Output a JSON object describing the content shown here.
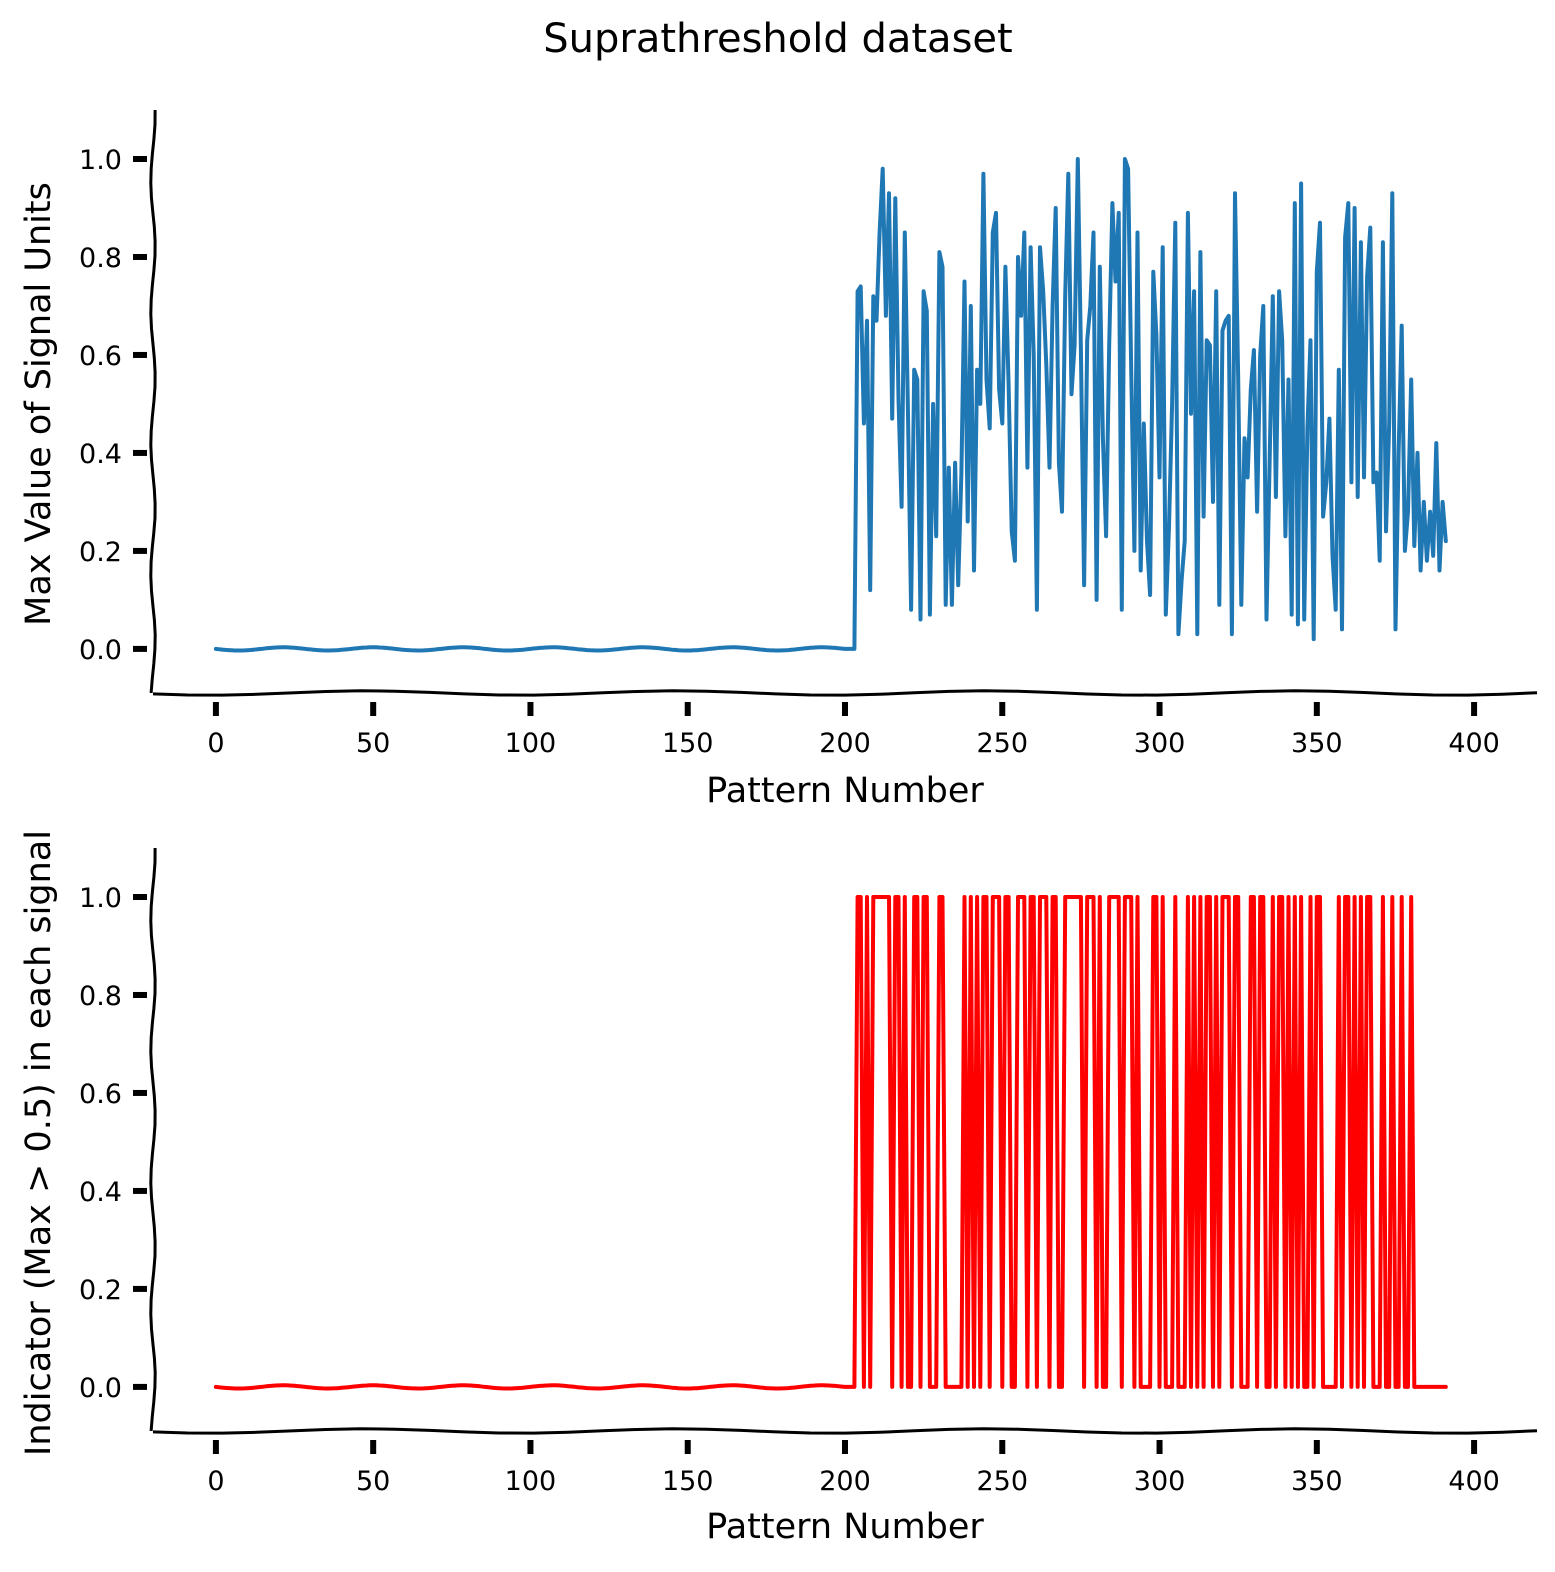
{
  "chart_data": [
    {
      "type": "line",
      "title": "Suprathreshold dataset",
      "xlabel": "Pattern Number",
      "ylabel": "Max Value of Signal Units",
      "xlim": [
        -20,
        420
      ],
      "ylim": [
        -0.09,
        1.1
      ],
      "xticks": [
        0,
        50,
        100,
        150,
        200,
        250,
        300,
        350,
        400
      ],
      "xtick_labels": [
        "0",
        "50",
        "100",
        "150",
        "200",
        "250",
        "300",
        "350",
        "400"
      ],
      "yticks": [
        0.0,
        0.2,
        0.4,
        0.6,
        0.8,
        1.0
      ],
      "ytick_labels": [
        "0.0",
        "0.2",
        "0.4",
        "0.6",
        "0.8",
        "1.0"
      ],
      "style": "xkcd",
      "series": [
        {
          "name": "max_signal",
          "color": "#1f77b4",
          "x_start": 0,
          "values": [
            0.0,
            0.0,
            0.0,
            0.0,
            0.0,
            0.0,
            0.0,
            0.0,
            0.0,
            0.0,
            0.0,
            0.0,
            0.0,
            0.0,
            0.0,
            0.0,
            0.0,
            0.0,
            0.0,
            0.0,
            0.0,
            0.0,
            0.0,
            0.0,
            0.0,
            0.0,
            0.0,
            0.0,
            0.0,
            0.0,
            0.0,
            0.0,
            0.0,
            0.0,
            0.0,
            0.0,
            0.0,
            0.0,
            0.0,
            0.0,
            0.0,
            0.0,
            0.0,
            0.0,
            0.0,
            0.0,
            0.0,
            0.0,
            0.0,
            0.0,
            0.0,
            0.0,
            0.0,
            0.0,
            0.0,
            0.0,
            0.0,
            0.0,
            0.0,
            0.0,
            0.0,
            0.0,
            0.0,
            0.0,
            0.0,
            0.0,
            0.0,
            0.0,
            0.0,
            0.0,
            0.0,
            0.0,
            0.0,
            0.0,
            0.0,
            0.0,
            0.0,
            0.0,
            0.0,
            0.0,
            0.0,
            0.0,
            0.0,
            0.0,
            0.0,
            0.0,
            0.0,
            0.0,
            0.0,
            0.0,
            0.0,
            0.0,
            0.0,
            0.0,
            0.0,
            0.0,
            0.0,
            0.0,
            0.0,
            0.0,
            0.0,
            0.0,
            0.0,
            0.0,
            0.0,
            0.0,
            0.0,
            0.0,
            0.0,
            0.0,
            0.0,
            0.0,
            0.0,
            0.0,
            0.0,
            0.0,
            0.0,
            0.0,
            0.0,
            0.0,
            0.0,
            0.0,
            0.0,
            0.0,
            0.0,
            0.0,
            0.0,
            0.0,
            0.0,
            0.0,
            0.0,
            0.0,
            0.0,
            0.0,
            0.0,
            0.0,
            0.0,
            0.0,
            0.0,
            0.0,
            0.0,
            0.0,
            0.0,
            0.0,
            0.0,
            0.0,
            0.0,
            0.0,
            0.0,
            0.0,
            0.0,
            0.0,
            0.0,
            0.0,
            0.0,
            0.0,
            0.0,
            0.0,
            0.0,
            0.0,
            0.0,
            0.0,
            0.0,
            0.0,
            0.0,
            0.0,
            0.0,
            0.0,
            0.0,
            0.0,
            0.0,
            0.0,
            0.0,
            0.0,
            0.0,
            0.0,
            0.0,
            0.0,
            0.0,
            0.0,
            0.0,
            0.0,
            0.0,
            0.0,
            0.0,
            0.0,
            0.0,
            0.0,
            0.0,
            0.0,
            0.0,
            0.0,
            0.0,
            0.0,
            0.0,
            0.0,
            0.0,
            0.0,
            0.0,
            0.0,
            0.0,
            0.0,
            0.0,
            0.0,
            0.73,
            0.74,
            0.46,
            0.67,
            0.12,
            0.72,
            0.67,
            0.85,
            0.98,
            0.68,
            0.93,
            0.47,
            0.92,
            0.51,
            0.29,
            0.85,
            0.49,
            0.08,
            0.57,
            0.55,
            0.06,
            0.73,
            0.69,
            0.07,
            0.5,
            0.23,
            0.81,
            0.78,
            0.09,
            0.37,
            0.09,
            0.38,
            0.13,
            0.36,
            0.75,
            0.26,
            0.7,
            0.16,
            0.57,
            0.5,
            0.97,
            0.55,
            0.45,
            0.85,
            0.89,
            0.53,
            0.46,
            0.78,
            0.54,
            0.24,
            0.18,
            0.8,
            0.68,
            0.85,
            0.37,
            0.82,
            0.6,
            0.08,
            0.82,
            0.73,
            0.58,
            0.37,
            0.7,
            0.9,
            0.38,
            0.28,
            0.72,
            0.97,
            0.52,
            0.62,
            1.0,
            0.61,
            0.13,
            0.63,
            0.7,
            0.85,
            0.1,
            0.78,
            0.43,
            0.23,
            0.62,
            0.91,
            0.75,
            0.89,
            0.08,
            1.0,
            0.98,
            0.57,
            0.2,
            0.85,
            0.16,
            0.46,
            0.22,
            0.11,
            0.77,
            0.64,
            0.35,
            0.82,
            0.07,
            0.25,
            0.5,
            0.87,
            0.03,
            0.14,
            0.22,
            0.89,
            0.48,
            0.73,
            0.03,
            0.81,
            0.27,
            0.63,
            0.62,
            0.3,
            0.73,
            0.09,
            0.65,
            0.67,
            0.68,
            0.03,
            0.93,
            0.55,
            0.09,
            0.43,
            0.35,
            0.53,
            0.61,
            0.28,
            0.6,
            0.7,
            0.06,
            0.38,
            0.72,
            0.31,
            0.73,
            0.63,
            0.23,
            0.55,
            0.07,
            0.91,
            0.05,
            0.95,
            0.06,
            0.45,
            0.63,
            0.02,
            0.77,
            0.87,
            0.27,
            0.34,
            0.47,
            0.19,
            0.08,
            0.57,
            0.04,
            0.84,
            0.91,
            0.34,
            0.9,
            0.31,
            0.83,
            0.35,
            0.76,
            0.86,
            0.34,
            0.36,
            0.18,
            0.83,
            0.24,
            0.46,
            0.93,
            0.04,
            0.4,
            0.66,
            0.2,
            0.28,
            0.55,
            0.21,
            0.4,
            0.16,
            0.3,
            0.18,
            0.28,
            0.19,
            0.42,
            0.16,
            0.3,
            0.22
          ]
        }
      ]
    },
    {
      "type": "line",
      "title": "",
      "xlabel": "Pattern Number",
      "ylabel": "Indicator (Max > 0.5) in each signal",
      "xlim": [
        -20,
        420
      ],
      "ylim": [
        -0.09,
        1.1
      ],
      "xticks": [
        0,
        50,
        100,
        150,
        200,
        250,
        300,
        350,
        400
      ],
      "xtick_labels": [
        "0",
        "50",
        "100",
        "150",
        "200",
        "250",
        "300",
        "350",
        "400"
      ],
      "yticks": [
        0.0,
        0.2,
        0.4,
        0.6,
        0.8,
        1.0
      ],
      "ytick_labels": [
        "0.0",
        "0.2",
        "0.4",
        "0.6",
        "0.8",
        "1.0"
      ],
      "style": "xkcd",
      "threshold": 0.5,
      "derived_from": "max_signal",
      "series": [
        {
          "name": "indicator",
          "color": "#ff0000"
        }
      ]
    }
  ]
}
